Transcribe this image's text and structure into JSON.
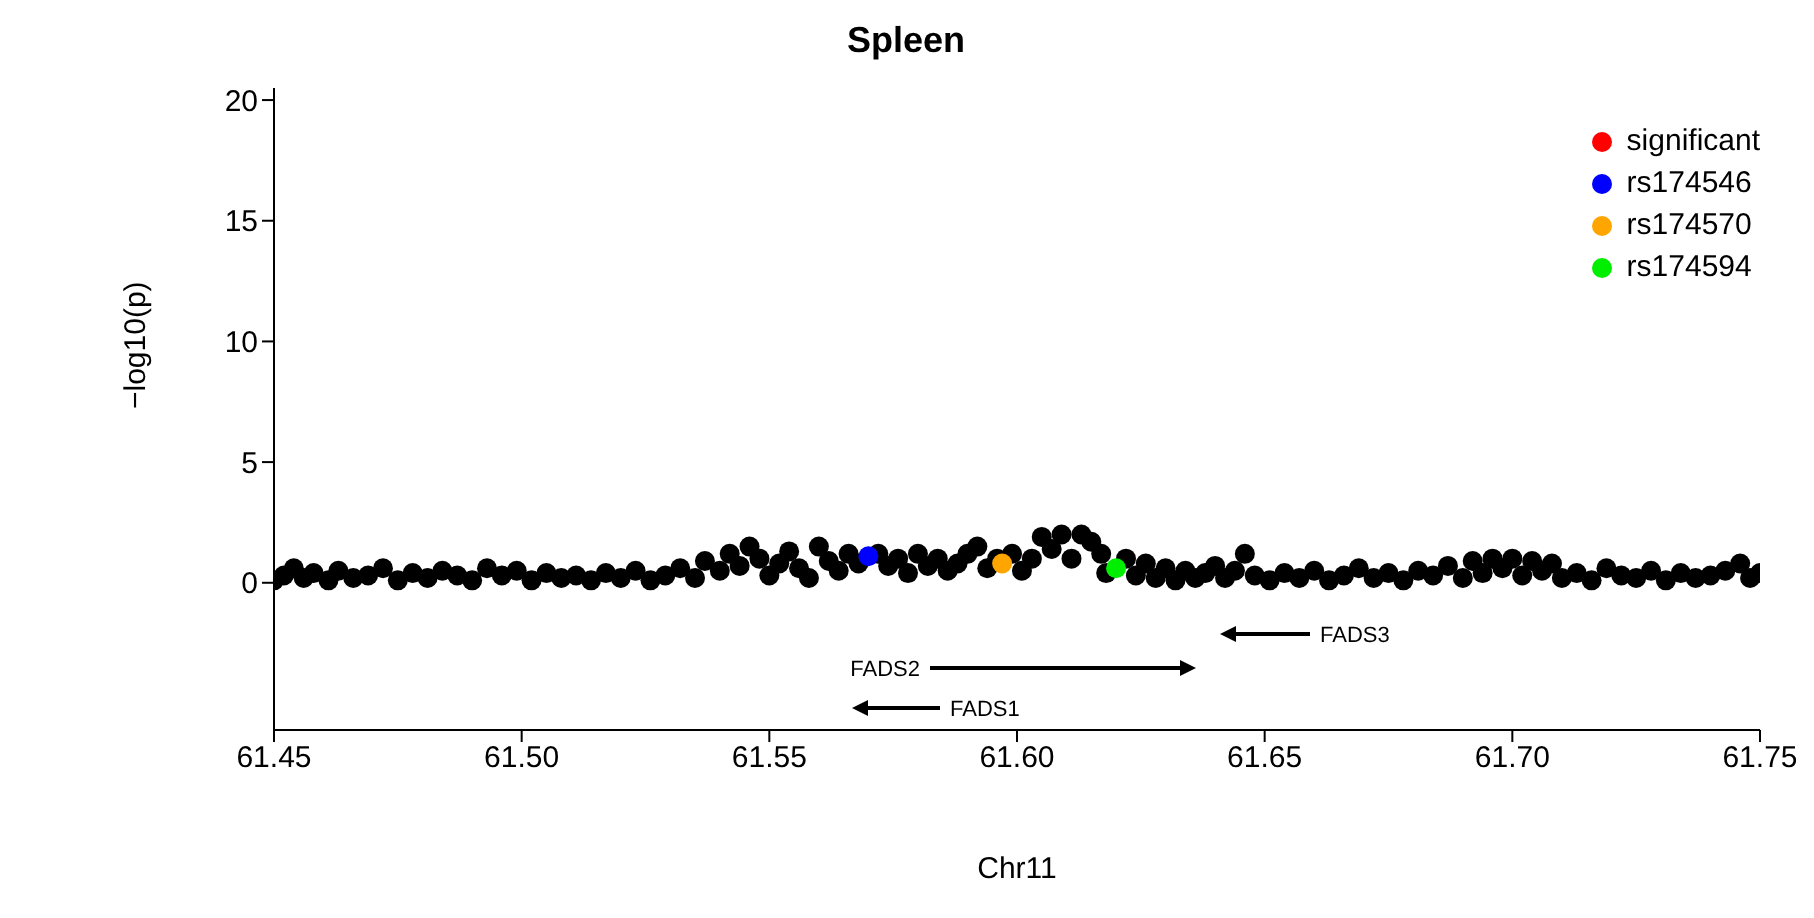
{
  "chart_data": {
    "type": "scatter",
    "title": "Spleen",
    "xlabel": "Chr11",
    "ylabel": "−log10(p)",
    "xlim": [
      61.45,
      61.75
    ],
    "xticks": [
      61.45,
      {
        "value": 61.5,
        "label": "61.50"
      },
      61.55,
      {
        "value": 61.6,
        "label": "61.60"
      },
      61.65,
      {
        "value": 61.7,
        "label": "61.70"
      },
      61.75
    ],
    "ylim": [
      -6.1,
      20.5
    ],
    "yticks": [
      0,
      5,
      10,
      15,
      20
    ],
    "grid": false,
    "legend": "top right",
    "marker": "circle",
    "series": [
      {
        "color": "#000000",
        "x": [
          61.45,
          61.452,
          61.454,
          61.456,
          61.458,
          61.461,
          61.463,
          61.466,
          61.469,
          61.472,
          61.475,
          61.478,
          61.481,
          61.484,
          61.487,
          61.49,
          61.493,
          61.496,
          61.499,
          61.502,
          61.505,
          61.508,
          61.511,
          61.514,
          61.517,
          61.52,
          61.523,
          61.526,
          61.529,
          61.532,
          61.535,
          61.537,
          61.54,
          61.542,
          61.544,
          61.546,
          61.548,
          61.55,
          61.552,
          61.554,
          61.556,
          61.558,
          61.56,
          61.562,
          61.564,
          61.566,
          61.568,
          61.572,
          61.574,
          61.576,
          61.578,
          61.58,
          61.582,
          61.584,
          61.586,
          61.588,
          61.59,
          61.592,
          61.594,
          61.596,
          61.599,
          61.601,
          61.603,
          61.605,
          61.607,
          61.609,
          61.611,
          61.613,
          61.615,
          61.617,
          61.618,
          61.622,
          61.624,
          61.626,
          61.628,
          61.63,
          61.632,
          61.634,
          61.636,
          61.638,
          61.64,
          61.642,
          61.644,
          61.646,
          61.648,
          61.651,
          61.654,
          61.657,
          61.66,
          61.663,
          61.666,
          61.669,
          61.672,
          61.675,
          61.678,
          61.681,
          61.684,
          61.687,
          61.69,
          61.692,
          61.694,
          61.696,
          61.698,
          61.7,
          61.702,
          61.704,
          61.706,
          61.708,
          61.71,
          61.713,
          61.716,
          61.719,
          61.722,
          61.725,
          61.728,
          61.731,
          61.734,
          61.737,
          61.74,
          61.743,
          61.746,
          61.748,
          61.75
        ],
        "values": [
          0.1,
          0.3,
          0.6,
          0.2,
          0.4,
          0.1,
          0.5,
          0.2,
          0.3,
          0.6,
          0.1,
          0.4,
          0.2,
          0.5,
          0.3,
          0.1,
          0.6,
          0.3,
          0.5,
          0.1,
          0.4,
          0.2,
          0.3,
          0.1,
          0.4,
          0.2,
          0.5,
          0.1,
          0.3,
          0.6,
          0.2,
          0.9,
          0.5,
          1.2,
          0.7,
          1.5,
          1.0,
          0.3,
          0.8,
          1.3,
          0.6,
          0.2,
          1.5,
          0.9,
          0.5,
          1.2,
          0.8,
          1.2,
          0.7,
          1.0,
          0.4,
          1.2,
          0.7,
          1.0,
          0.5,
          0.8,
          1.2,
          1.5,
          0.6,
          1.0,
          1.2,
          0.5,
          1.0,
          1.9,
          1.4,
          2.0,
          1.0,
          2.0,
          1.7,
          1.2,
          0.4,
          1.0,
          0.3,
          0.8,
          0.2,
          0.6,
          0.1,
          0.5,
          0.2,
          0.4,
          0.7,
          0.2,
          0.5,
          1.2,
          0.3,
          0.1,
          0.4,
          0.2,
          0.5,
          0.1,
          0.3,
          0.6,
          0.2,
          0.4,
          0.1,
          0.5,
          0.3,
          0.7,
          0.2,
          0.9,
          0.4,
          1.0,
          0.6,
          1.0,
          0.3,
          0.9,
          0.5,
          0.8,
          0.2,
          0.4,
          0.1,
          0.6,
          0.3,
          0.2,
          0.5,
          0.1,
          0.4,
          0.2,
          0.3,
          0.5,
          0.8,
          0.2,
          0.4
        ]
      },
      {
        "name": "significant",
        "color": "#ff0000"
      },
      {
        "name": "rs174546",
        "color": "#0000ff",
        "x": [
          61.57
        ],
        "values": [
          1.1
        ]
      },
      {
        "name": "rs174570",
        "color": "#ffa500",
        "x": [
          61.597
        ],
        "values": [
          0.8
        ]
      },
      {
        "name": "rs174594",
        "color": "#00ee00",
        "x": [
          61.62
        ],
        "values": [
          0.6
        ]
      }
    ],
    "annotations": [
      "FADS3",
      "FADS2",
      "FADS1"
    ]
  }
}
